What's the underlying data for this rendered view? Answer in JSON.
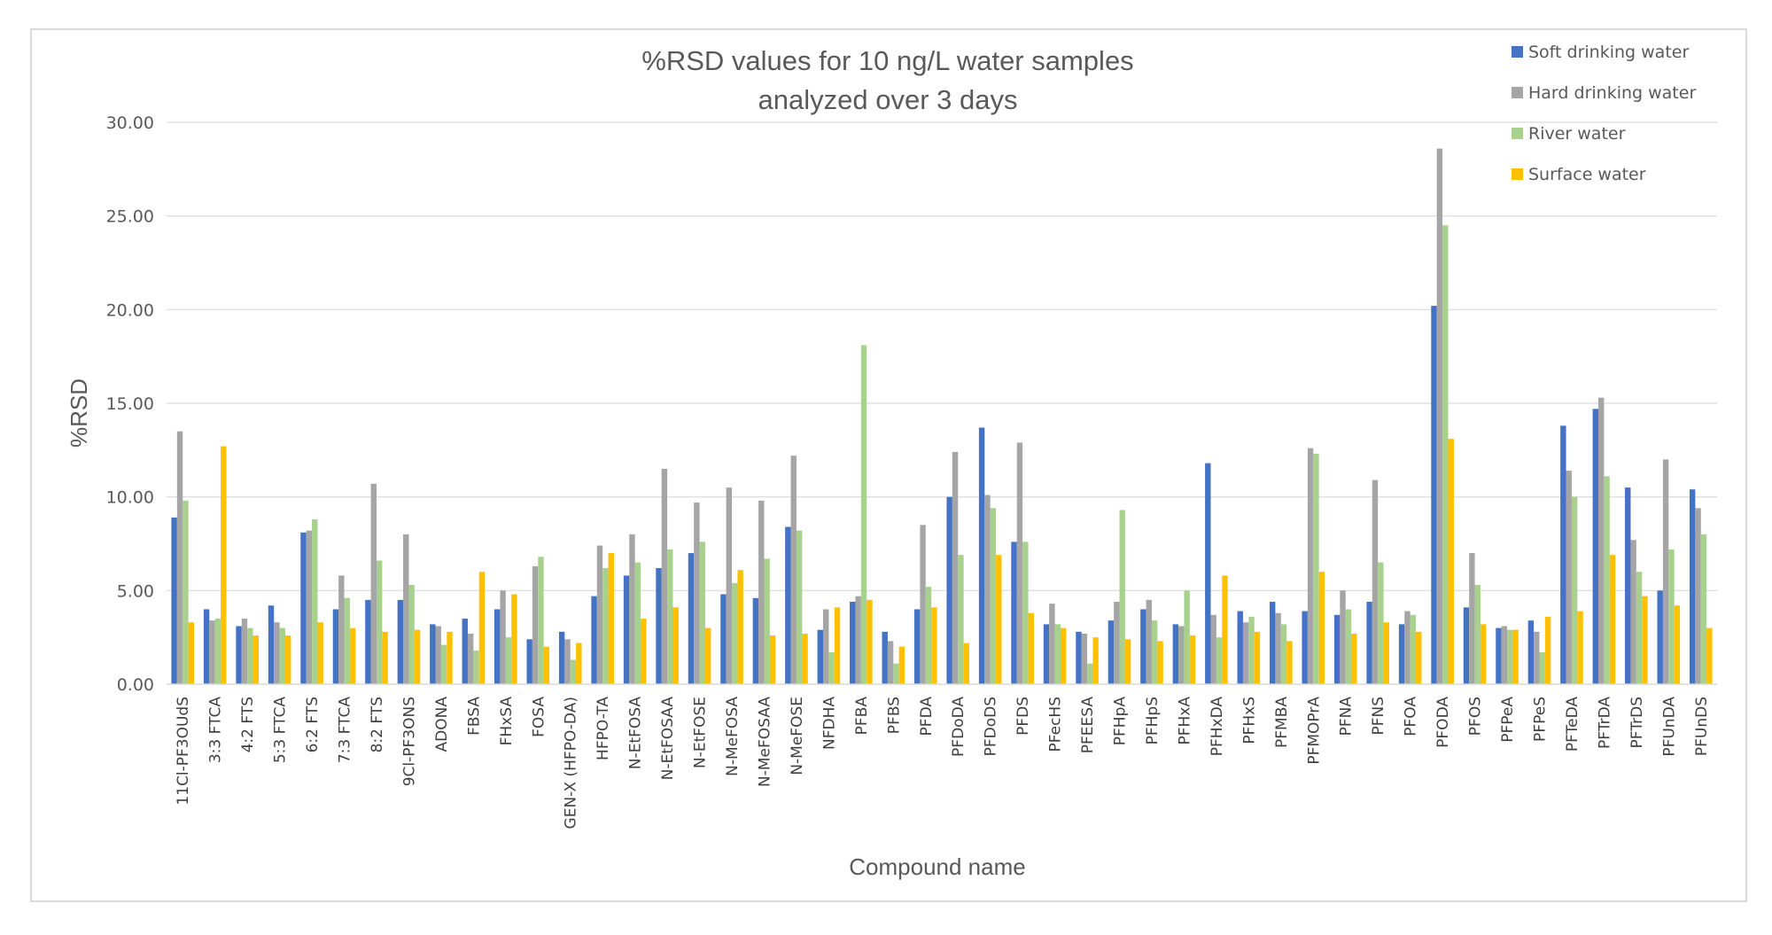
{
  "chart_data": {
    "type": "bar",
    "title": [
      "%RSD values for 10 ng/L water samples",
      "analyzed over 3 days"
    ],
    "xlabel": "Compound name",
    "ylabel": "%RSD",
    "ylim": [
      0,
      30
    ],
    "yticks": [
      "0.00",
      "5.00",
      "10.00",
      "15.00",
      "20.00",
      "25.00",
      "30.00"
    ],
    "grid": "horizontal",
    "legend_position": "top-right",
    "categories": [
      "11Cl-PF3OUdS",
      "3:3 FTCA",
      "4:2 FTS",
      "5:3 FTCA",
      "6:2 FTS",
      "7:3 FTCA",
      "8:2 FTS",
      "9Cl-PF3ONS",
      "ADONA",
      "FBSA",
      "FHxSA",
      "FOSA",
      "GEN-X (HFPO-DA)",
      "HFPO-TA",
      "N-EtFOSA",
      "N-EtFOSAA",
      "N-EtFOSE",
      "N-MeFOSA",
      "N-MeFOSAA",
      "N-MeFOSE",
      "NFDHA",
      "PFBA",
      "PFBS",
      "PFDA",
      "PFDoDA",
      "PFDoDS",
      "PFDS",
      "PFecHS",
      "PFEESA",
      "PFHpA",
      "PFHpS",
      "PFHxA",
      "PFHxDA",
      "PFHxS",
      "PFMBA",
      "PFMOPrA",
      "PFNA",
      "PFNS",
      "PFOA",
      "PFODA",
      "PFOS",
      "PFPeA",
      "PFPeS",
      "PFTeDA",
      "PFTrDA",
      "PFTrDS",
      "PFUnDA",
      "PFUnDS"
    ],
    "series": [
      {
        "name": "Soft drinking water",
        "color": "#4472c4",
        "values": [
          8.9,
          4.0,
          3.1,
          4.2,
          8.1,
          4.0,
          4.5,
          4.5,
          3.2,
          3.5,
          4.0,
          2.4,
          2.8,
          4.7,
          5.8,
          6.2,
          7.0,
          4.8,
          4.6,
          8.4,
          2.9,
          4.4,
          2.8,
          4.0,
          10.0,
          13.7,
          7.6,
          3.2,
          2.8,
          3.4,
          4.0,
          3.2,
          11.8,
          3.9,
          4.4,
          3.9,
          3.7,
          4.4,
          3.2,
          20.2,
          4.1,
          3.0,
          3.4,
          13.8,
          14.7,
          10.5,
          5.0,
          10.4
        ]
      },
      {
        "name": "Hard drinking water",
        "color": "#a5a5a5",
        "values": [
          13.5,
          3.4,
          3.5,
          3.3,
          8.2,
          5.8,
          10.7,
          8.0,
          3.1,
          2.7,
          5.0,
          6.3,
          2.4,
          7.4,
          8.0,
          11.5,
          9.7,
          10.5,
          9.8,
          12.2,
          4.0,
          4.7,
          2.3,
          8.5,
          12.4,
          10.1,
          12.9,
          4.3,
          2.7,
          4.4,
          4.5,
          3.1,
          3.7,
          3.3,
          3.8,
          12.6,
          5.0,
          10.9,
          3.9,
          28.6,
          7.0,
          3.1,
          2.8,
          11.4,
          15.3,
          7.7,
          12.0,
          9.4
        ]
      },
      {
        "name": "River water",
        "color": "#a9d18e",
        "values": [
          9.8,
          3.5,
          3.0,
          3.0,
          8.8,
          4.6,
          6.6,
          5.3,
          2.1,
          1.8,
          2.5,
          6.8,
          1.3,
          6.2,
          6.5,
          7.2,
          7.6,
          5.4,
          6.7,
          8.2,
          1.7,
          18.1,
          1.1,
          5.2,
          6.9,
          9.4,
          7.6,
          3.2,
          1.1,
          9.3,
          3.4,
          5.0,
          2.5,
          3.6,
          3.2,
          12.3,
          4.0,
          6.5,
          3.7,
          24.5,
          5.3,
          2.9,
          1.7,
          10.0,
          11.1,
          6.0,
          7.2,
          8.0
        ]
      },
      {
        "name": "Surface water",
        "color": "#ffc000",
        "values": [
          3.3,
          12.7,
          2.6,
          2.6,
          3.3,
          3.0,
          2.8,
          2.9,
          2.8,
          6.0,
          4.8,
          2.0,
          2.2,
          7.0,
          3.5,
          4.1,
          3.0,
          6.1,
          2.6,
          2.7,
          4.1,
          4.5,
          2.0,
          4.1,
          2.2,
          6.9,
          3.8,
          3.0,
          2.5,
          2.4,
          2.3,
          2.6,
          5.8,
          2.8,
          2.3,
          6.0,
          2.7,
          3.3,
          2.8,
          13.1,
          3.2,
          2.9,
          3.6,
          3.9,
          6.9,
          4.7,
          4.2,
          3.0
        ]
      }
    ]
  }
}
